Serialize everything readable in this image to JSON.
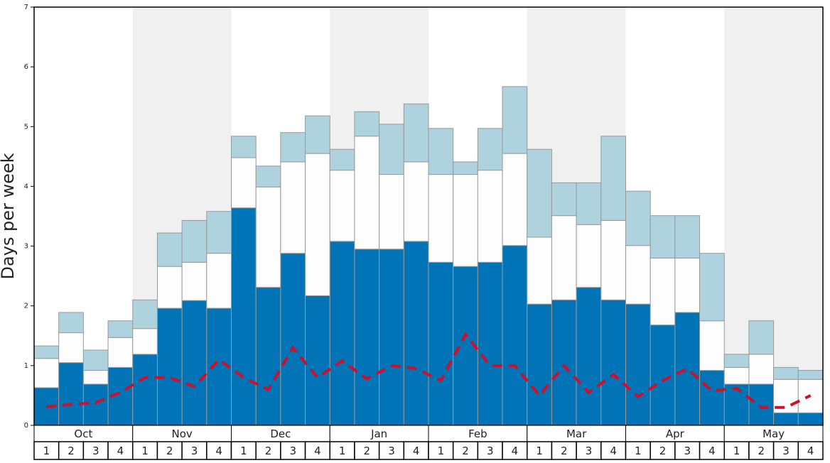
{
  "chart_data": {
    "type": "stacked-bar",
    "y_label": "Days per week",
    "categories": [
      "1",
      "2",
      "3",
      "4",
      "1",
      "2",
      "3",
      "4",
      "1",
      "2",
      "3",
      "4",
      "1",
      "2",
      "3",
      "4",
      "1",
      "2",
      "3",
      "4",
      "1",
      "2",
      "3",
      "4",
      "1",
      "2",
      "3",
      "4",
      "1",
      "2",
      "3",
      "4"
    ],
    "groups": [
      "Oct",
      "Nov",
      "Dec",
      "Jan",
      "Feb",
      "Mar",
      "Apr",
      "May"
    ],
    "ylim": [
      0,
      7
    ],
    "yticks": [
      0,
      1,
      2,
      3,
      4,
      5,
      6,
      7
    ],
    "series": [
      {
        "color": "#0074b7",
        "values": [
          0.63,
          1.05,
          0.69,
          0.97,
          1.19,
          1.96,
          2.09,
          1.96,
          3.64,
          2.31,
          2.88,
          2.17,
          3.08,
          2.95,
          2.95,
          3.08,
          2.73,
          2.66,
          2.73,
          3.01,
          2.03,
          2.1,
          2.31,
          2.1,
          2.03,
          1.68,
          1.89,
          0.92,
          0.69,
          0.69,
          0.21,
          0.21
        ]
      },
      {
        "color": "#fdfdfd",
        "values": [
          0.49,
          0.5,
          0.23,
          0.5,
          0.43,
          0.7,
          0.64,
          0.92,
          0.84,
          1.68,
          1.53,
          2.38,
          1.19,
          1.89,
          1.25,
          1.33,
          1.47,
          1.54,
          1.54,
          1.54,
          1.12,
          1.41,
          1.05,
          1.33,
          0.98,
          1.12,
          0.91,
          0.83,
          0.28,
          0.5,
          0.56,
          0.56
        ]
      },
      {
        "color": "#aed3df",
        "values": [
          0.21,
          0.34,
          0.34,
          0.28,
          0.48,
          0.56,
          0.7,
          0.7,
          0.36,
          0.35,
          0.49,
          0.63,
          0.35,
          0.41,
          0.84,
          0.97,
          0.77,
          0.21,
          0.7,
          1.12,
          1.47,
          0.55,
          0.7,
          1.41,
          0.91,
          0.71,
          0.71,
          1.13,
          0.22,
          0.56,
          0.2,
          0.15
        ]
      }
    ],
    "line": {
      "color": "#d0102a",
      "values": [
        0.31,
        0.35,
        0.38,
        0.55,
        0.8,
        0.8,
        0.65,
        1.1,
        0.8,
        0.6,
        1.3,
        0.8,
        1.08,
        0.78,
        1.0,
        0.95,
        0.75,
        1.52,
        1.0,
        1.0,
        0.5,
        1.0,
        0.55,
        0.85,
        0.48,
        0.75,
        0.95,
        0.58,
        0.62,
        0.3,
        0.3,
        0.5
      ]
    }
  }
}
